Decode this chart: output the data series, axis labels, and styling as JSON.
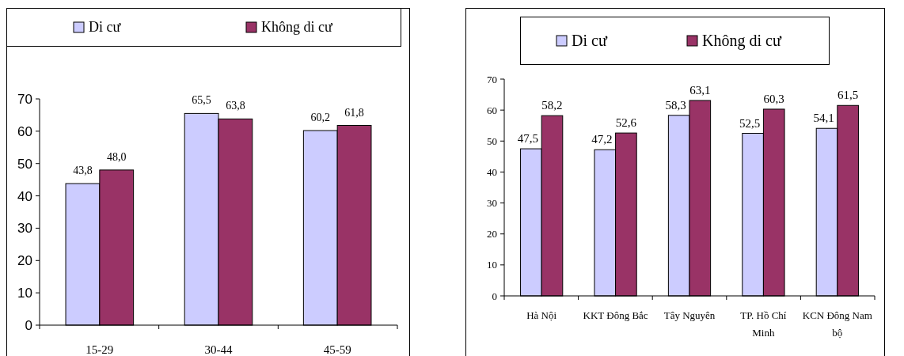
{
  "chart_data": [
    {
      "type": "bar",
      "categories": [
        "15-29",
        "30-44",
        "45-59"
      ],
      "ylim": [
        0,
        70
      ],
      "yticks": [
        0,
        10,
        20,
        30,
        40,
        50,
        60,
        70
      ],
      "legend": "top",
      "grid": false,
      "series": [
        {
          "name": "Di cư",
          "color": "#ccccff",
          "values": [
            43.8,
            65.5,
            60.2
          ],
          "value_labels": [
            "43,8",
            "65,5",
            "60,2"
          ]
        },
        {
          "name": "Không di cư",
          "color": "#993366",
          "values": [
            48.0,
            63.8,
            61.8
          ],
          "value_labels": [
            "48,0",
            "63,8",
            "61,8"
          ]
        }
      ]
    },
    {
      "type": "bar",
      "categories": [
        "Hà Nội",
        "KKT Đông Bắc",
        "Tây Nguyên",
        "TP. Hồ Chí Minh",
        "KCN Đông Nam bộ"
      ],
      "ylim": [
        0,
        70
      ],
      "yticks": [
        0,
        10,
        20,
        30,
        40,
        50,
        60,
        70
      ],
      "legend": "top",
      "grid": false,
      "series": [
        {
          "name": "Di cư",
          "color": "#ccccff",
          "values": [
            47.5,
            47.2,
            58.3,
            52.5,
            54.1
          ],
          "value_labels": [
            "47,5",
            "47,2",
            "58,3",
            "52,5",
            "54,1"
          ]
        },
        {
          "name": "Không di cư",
          "color": "#993366",
          "values": [
            58.2,
            52.6,
            63.1,
            60.3,
            61.5
          ],
          "value_labels": [
            "58,2",
            "52,6",
            "63,1",
            "60,3",
            "61,5"
          ]
        }
      ]
    }
  ]
}
